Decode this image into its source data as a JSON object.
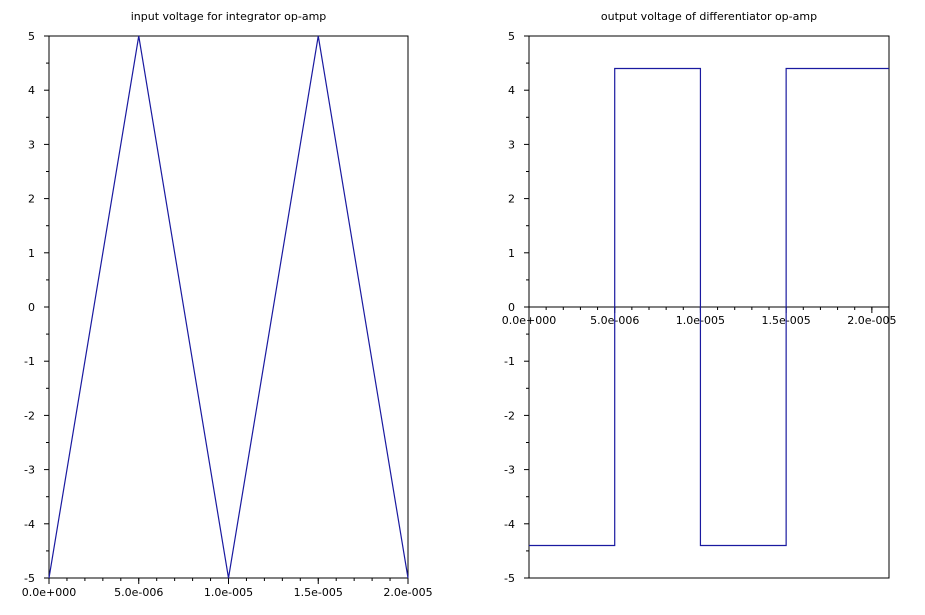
{
  "chart_data": [
    {
      "type": "line",
      "title": "input voltage for integrator op-amp",
      "xlabel": "",
      "ylabel": "",
      "xlim": [
        0,
        2e-05
      ],
      "ylim": [
        -5,
        5
      ],
      "grid": false,
      "x_ticks": [
        0,
        5e-06,
        1e-05,
        1.5e-05,
        2e-05
      ],
      "x_tick_labels": [
        "0.0e+000",
        "5.0e-006",
        "1.0e-005",
        "1.5e-005",
        "2.0e-005"
      ],
      "y_ticks": [
        -5,
        -4,
        -3,
        -2,
        -1,
        0,
        1,
        2,
        3,
        4,
        5
      ],
      "y_tick_labels": [
        "-5",
        "-4",
        "-3",
        "-2",
        "-1",
        "0",
        "1",
        "2",
        "3",
        "4",
        "5"
      ],
      "series": [
        {
          "color": "#1a1aa0",
          "x": [
            0,
            5e-06,
            1e-05,
            1.5e-05,
            2e-05
          ],
          "y": [
            -5,
            5,
            -5,
            5,
            -5
          ]
        }
      ]
    },
    {
      "type": "line",
      "title": "output voltage of differentiator op-amp",
      "xlabel": "",
      "ylabel": "",
      "xlim": [
        0,
        2.1e-05
      ],
      "ylim": [
        -5,
        5
      ],
      "grid": false,
      "x_ticks": [
        0,
        5e-06,
        1e-05,
        1.5e-05,
        2e-05
      ],
      "x_tick_labels": [
        "0.0e+000",
        "5.0e-006",
        "1.0e-005",
        "1.5e-005",
        "2.0e-005"
      ],
      "y_ticks": [
        -5,
        -4,
        -3,
        -2,
        -1,
        0,
        1,
        2,
        3,
        4,
        5
      ],
      "y_tick_labels": [
        "-5",
        "-4",
        "-3",
        "-2",
        "-1",
        "0",
        "1",
        "2",
        "3",
        "4",
        "5"
      ],
      "series": [
        {
          "color": "#1a1aa0",
          "x": [
            0,
            5e-06,
            5e-06,
            1e-05,
            1e-05,
            1.5e-05,
            1.5e-05,
            2.1e-05
          ],
          "y": [
            -4.4,
            -4.4,
            4.4,
            4.4,
            -4.4,
            -4.4,
            4.4,
            4.4
          ]
        }
      ]
    }
  ]
}
